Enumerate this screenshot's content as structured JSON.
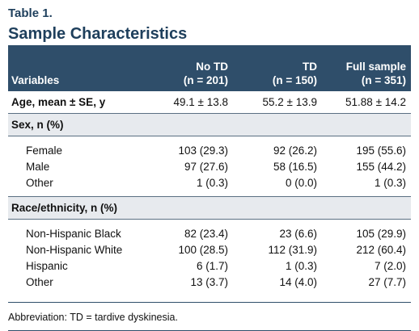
{
  "table_label": "Table 1.",
  "title": "Sample Characteristics",
  "header": {
    "variables": "Variables",
    "col1_name": "No TD",
    "col1_n": "(n = 201)",
    "col2_name": "TD",
    "col2_n": "(n = 150)",
    "col3_name": "Full sample",
    "col3_n": "(n = 351)"
  },
  "age_row": {
    "label": "Age, mean ± SE, y",
    "v1": "49.1 ± 13.8",
    "v2": "55.2 ± 13.9",
    "v3": "51.88 ± 14.2"
  },
  "sex": {
    "label": "Sex, n (%)",
    "rows": [
      {
        "label": "Female",
        "v1": "103 (29.3)",
        "v2": "92 (26.2)",
        "v3": "195 (55.6)"
      },
      {
        "label": "Male",
        "v1": "97 (27.6)",
        "v2": "58 (16.5)",
        "v3": "155 (44.2)"
      },
      {
        "label": "Other",
        "v1": "1 (0.3)",
        "v2": "0 (0.0)",
        "v3": "1 (0.3)"
      }
    ]
  },
  "race": {
    "label": "Race/ethnicity, n (%)",
    "rows": [
      {
        "label": "Non-Hispanic Black",
        "v1": "82 (23.4)",
        "v2": "23 (6.6)",
        "v3": "105 (29.9)"
      },
      {
        "label": "Non-Hispanic White",
        "v1": "100 (28.5)",
        "v2": "112 (31.9)",
        "v3": "212 (60.4)"
      },
      {
        "label": "Hispanic",
        "v1": "6 (1.7)",
        "v2": "1 (0.3)",
        "v3": "7 (2.0)"
      },
      {
        "label": "Other",
        "v1": "13 (3.7)",
        "v2": "14 (4.0)",
        "v3": "27 (7.7)"
      }
    ]
  },
  "footnote": "Abbreviation: TD = tardive dyskinesia."
}
